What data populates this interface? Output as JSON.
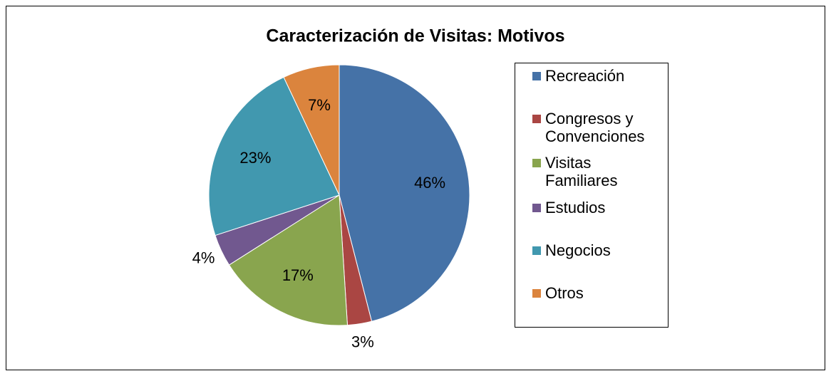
{
  "chart_data": {
    "type": "pie",
    "title": "Caracterización de Visitas: Motivos",
    "categories": [
      "Recreación",
      "Congresos y Convenciones",
      "Visitas Familiares",
      "Estudios",
      "Negocios",
      "Otros"
    ],
    "values": [
      46,
      3,
      17,
      4,
      23,
      7
    ],
    "value_labels": [
      "46%",
      "3%",
      "17%",
      "4%",
      "23%",
      "7%"
    ],
    "colors": [
      "#4572a7",
      "#aa4643",
      "#89a54e",
      "#71588f",
      "#4198af",
      "#db843d"
    ],
    "legend": "right"
  }
}
